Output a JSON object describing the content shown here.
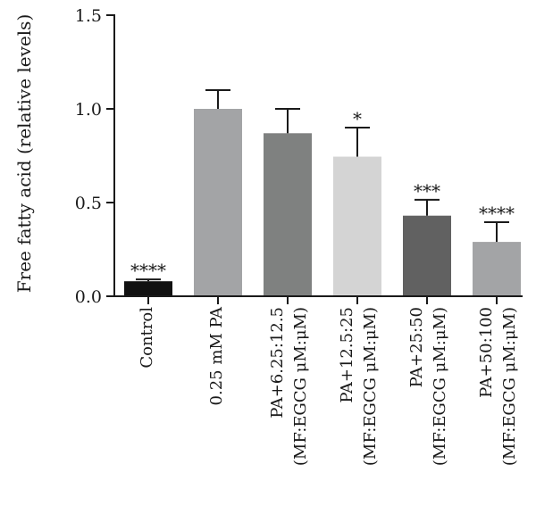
{
  "chart_data": {
    "type": "bar",
    "title": "",
    "xlabel": "",
    "ylabel": "Free fatty acid (relative levels)",
    "ylim": [
      0,
      1.5
    ],
    "yticks": [
      "0.0",
      "0.5",
      "1.0",
      "1.5"
    ],
    "ytick_values": [
      0,
      0.5,
      1.0,
      1.5
    ],
    "grid": false,
    "categories": [
      {
        "line1": "Control",
        "line2": ""
      },
      {
        "line1": "0.25 mM PA",
        "line2": ""
      },
      {
        "line1": "PA+6.25:12.5",
        "line2": "(MF:EGCG μM:μM)"
      },
      {
        "line1": "PA+12.5:25",
        "line2": "(MF:EGCG μM:μM)"
      },
      {
        "line1": "PA+25:50",
        "line2": "(MF:EGCG μM:μM)"
      },
      {
        "line1": "PA+50:100",
        "line2": "(MF:EGCG μM:μM)"
      }
    ],
    "values": [
      0.08,
      1.0,
      0.87,
      0.745,
      0.43,
      0.29
    ],
    "errors": [
      0.01,
      0.1,
      0.13,
      0.155,
      0.085,
      0.105
    ],
    "significance": [
      "****",
      "",
      "",
      "*",
      "***",
      "****"
    ],
    "colors": [
      "#111111",
      "#a3a4a6",
      "#7f8180",
      "#d4d4d4",
      "#616161",
      "#a3a4a6"
    ]
  }
}
